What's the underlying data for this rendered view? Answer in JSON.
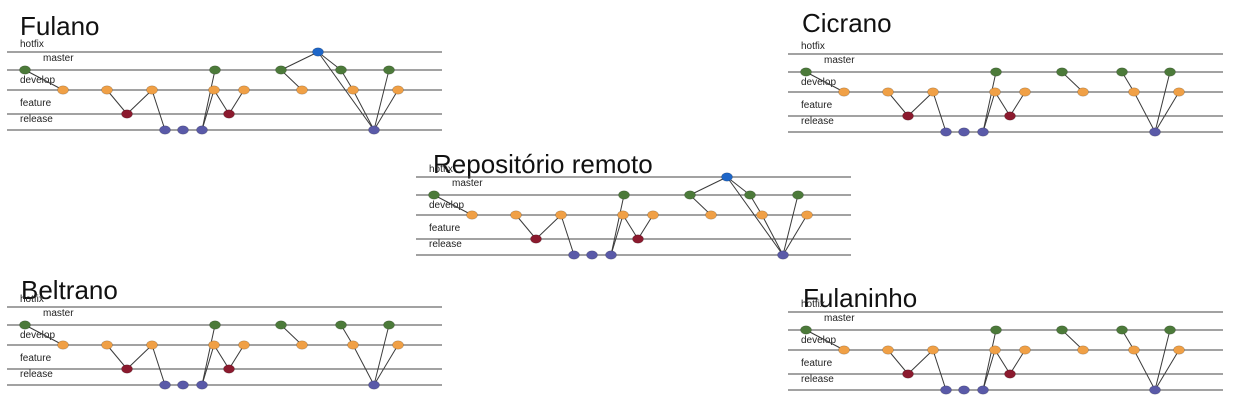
{
  "lane_labels": [
    "hotfix",
    "master",
    "develop",
    "feature",
    "release"
  ],
  "colors": {
    "lane_line": "#444444",
    "edge": "#3a3a3a",
    "master": "#1e66c8",
    "develop": "#4c7a3a",
    "feature": "#f0a046",
    "release": "#8b1a2e",
    "hotfix": "#5a5aa8"
  },
  "panels": [
    {
      "id": "fulano",
      "title": "Fulano",
      "variant": "merged"
    },
    {
      "id": "cicrano",
      "title": "Cicrano",
      "variant": "local"
    },
    {
      "id": "remoto",
      "title": "Repositório remoto",
      "variant": "merged"
    },
    {
      "id": "beltrano",
      "title": "Beltrano",
      "variant": "local"
    },
    {
      "id": "fulaninho",
      "title": "Fulaninho",
      "variant": "local"
    }
  ]
}
